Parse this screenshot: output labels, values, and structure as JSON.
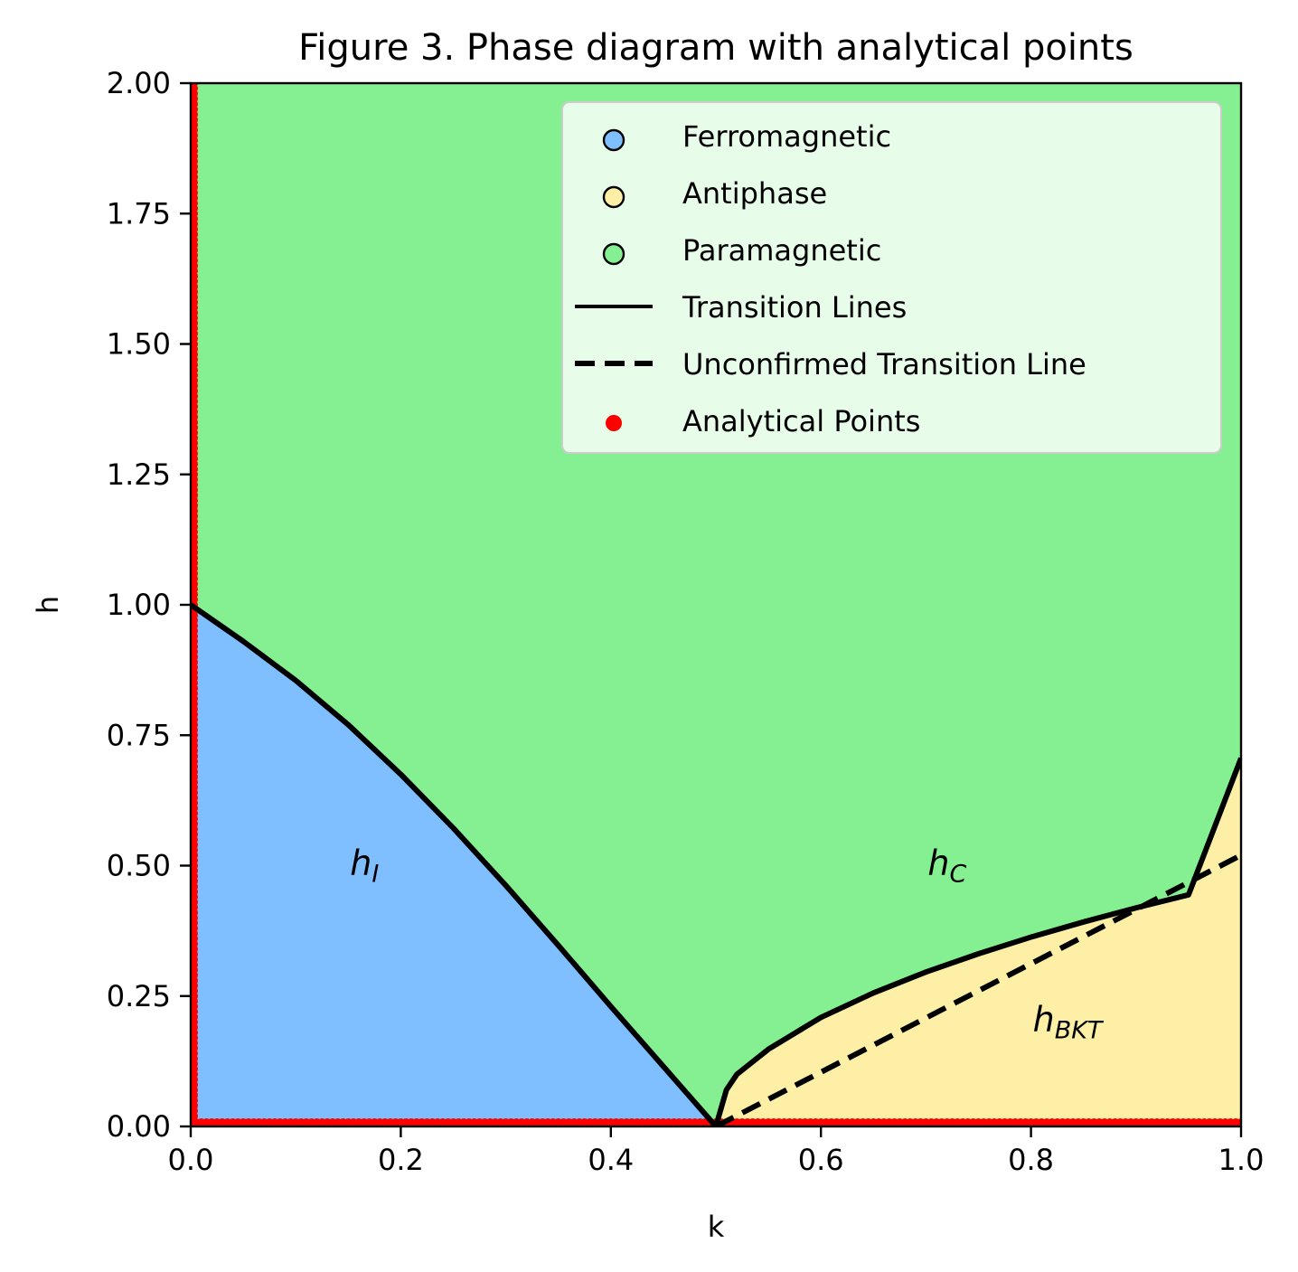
{
  "chart_data": {
    "type": "scatter",
    "title": "Figure 3. Phase diagram with analytical points",
    "xlabel": "k",
    "ylabel": "h",
    "xlim": [
      0.0,
      1.0
    ],
    "ylim": [
      0.0,
      2.0
    ],
    "xticks": [
      "0.0",
      "0.2",
      "0.4",
      "0.6",
      "0.8",
      "1.0"
    ],
    "yticks": [
      "0.00",
      "0.25",
      "0.50",
      "0.75",
      "1.00",
      "1.25",
      "1.50",
      "1.75",
      "2.00"
    ],
    "legend_position": "top-right",
    "colors": {
      "ferromagnetic": "#80bfff",
      "antiphase": "#fdf0a6",
      "paramagnetic": "#85f091",
      "analytical": "#ff0000",
      "line": "#000000"
    },
    "legend": [
      {
        "key": "ferro",
        "label": "Ferromagnetic"
      },
      {
        "key": "anti",
        "label": "Antiphase"
      },
      {
        "key": "para",
        "label": "Paramagnetic"
      },
      {
        "key": "solid",
        "label": "Transition Lines"
      },
      {
        "key": "dashed",
        "label": "Unconfirmed Transition Line"
      },
      {
        "key": "points",
        "label": "Analytical Points"
      }
    ],
    "series": [
      {
        "name": "Transition Lines",
        "style": "solid",
        "segment": "h_I",
        "x": [
          0.0,
          0.05,
          0.1,
          0.15,
          0.2,
          0.25,
          0.3,
          0.35,
          0.4,
          0.45,
          0.5
        ],
        "y": [
          1.0,
          0.93,
          0.855,
          0.77,
          0.675,
          0.572,
          0.462,
          0.347,
          0.23,
          0.115,
          0.0
        ]
      },
      {
        "name": "Transition Lines",
        "style": "solid",
        "segment": "h_C",
        "x": [
          0.5,
          0.51,
          0.52,
          0.55,
          0.6,
          0.65,
          0.7,
          0.75,
          0.8,
          0.85,
          0.9,
          0.95,
          1.0
        ],
        "y": [
          0.0,
          0.07,
          0.1,
          0.148,
          0.209,
          0.256,
          0.296,
          0.331,
          0.363,
          0.392,
          0.419,
          0.444,
          0.706
        ]
      },
      {
        "name": "Unconfirmed Transition Line",
        "style": "dashed",
        "segment": "h_BKT",
        "x": [
          0.5,
          1.0
        ],
        "y": [
          0.0,
          0.52
        ]
      }
    ],
    "analytical_points": {
      "k_zero_axis": {
        "k": 0.0,
        "h_range": [
          0.0,
          2.0
        ]
      },
      "h_zero_axis": {
        "h": 0.0,
        "k_range": [
          0.0,
          1.0
        ]
      }
    },
    "annotations": [
      {
        "id": "hI",
        "main": "h",
        "sub": "I",
        "x": 0.15,
        "y": 0.5
      },
      {
        "id": "hC",
        "main": "h",
        "sub": "C",
        "x": 0.7,
        "y": 0.5
      },
      {
        "id": "hBKT",
        "main": "h",
        "sub": "BKT",
        "x": 0.8,
        "y": 0.2
      }
    ]
  }
}
